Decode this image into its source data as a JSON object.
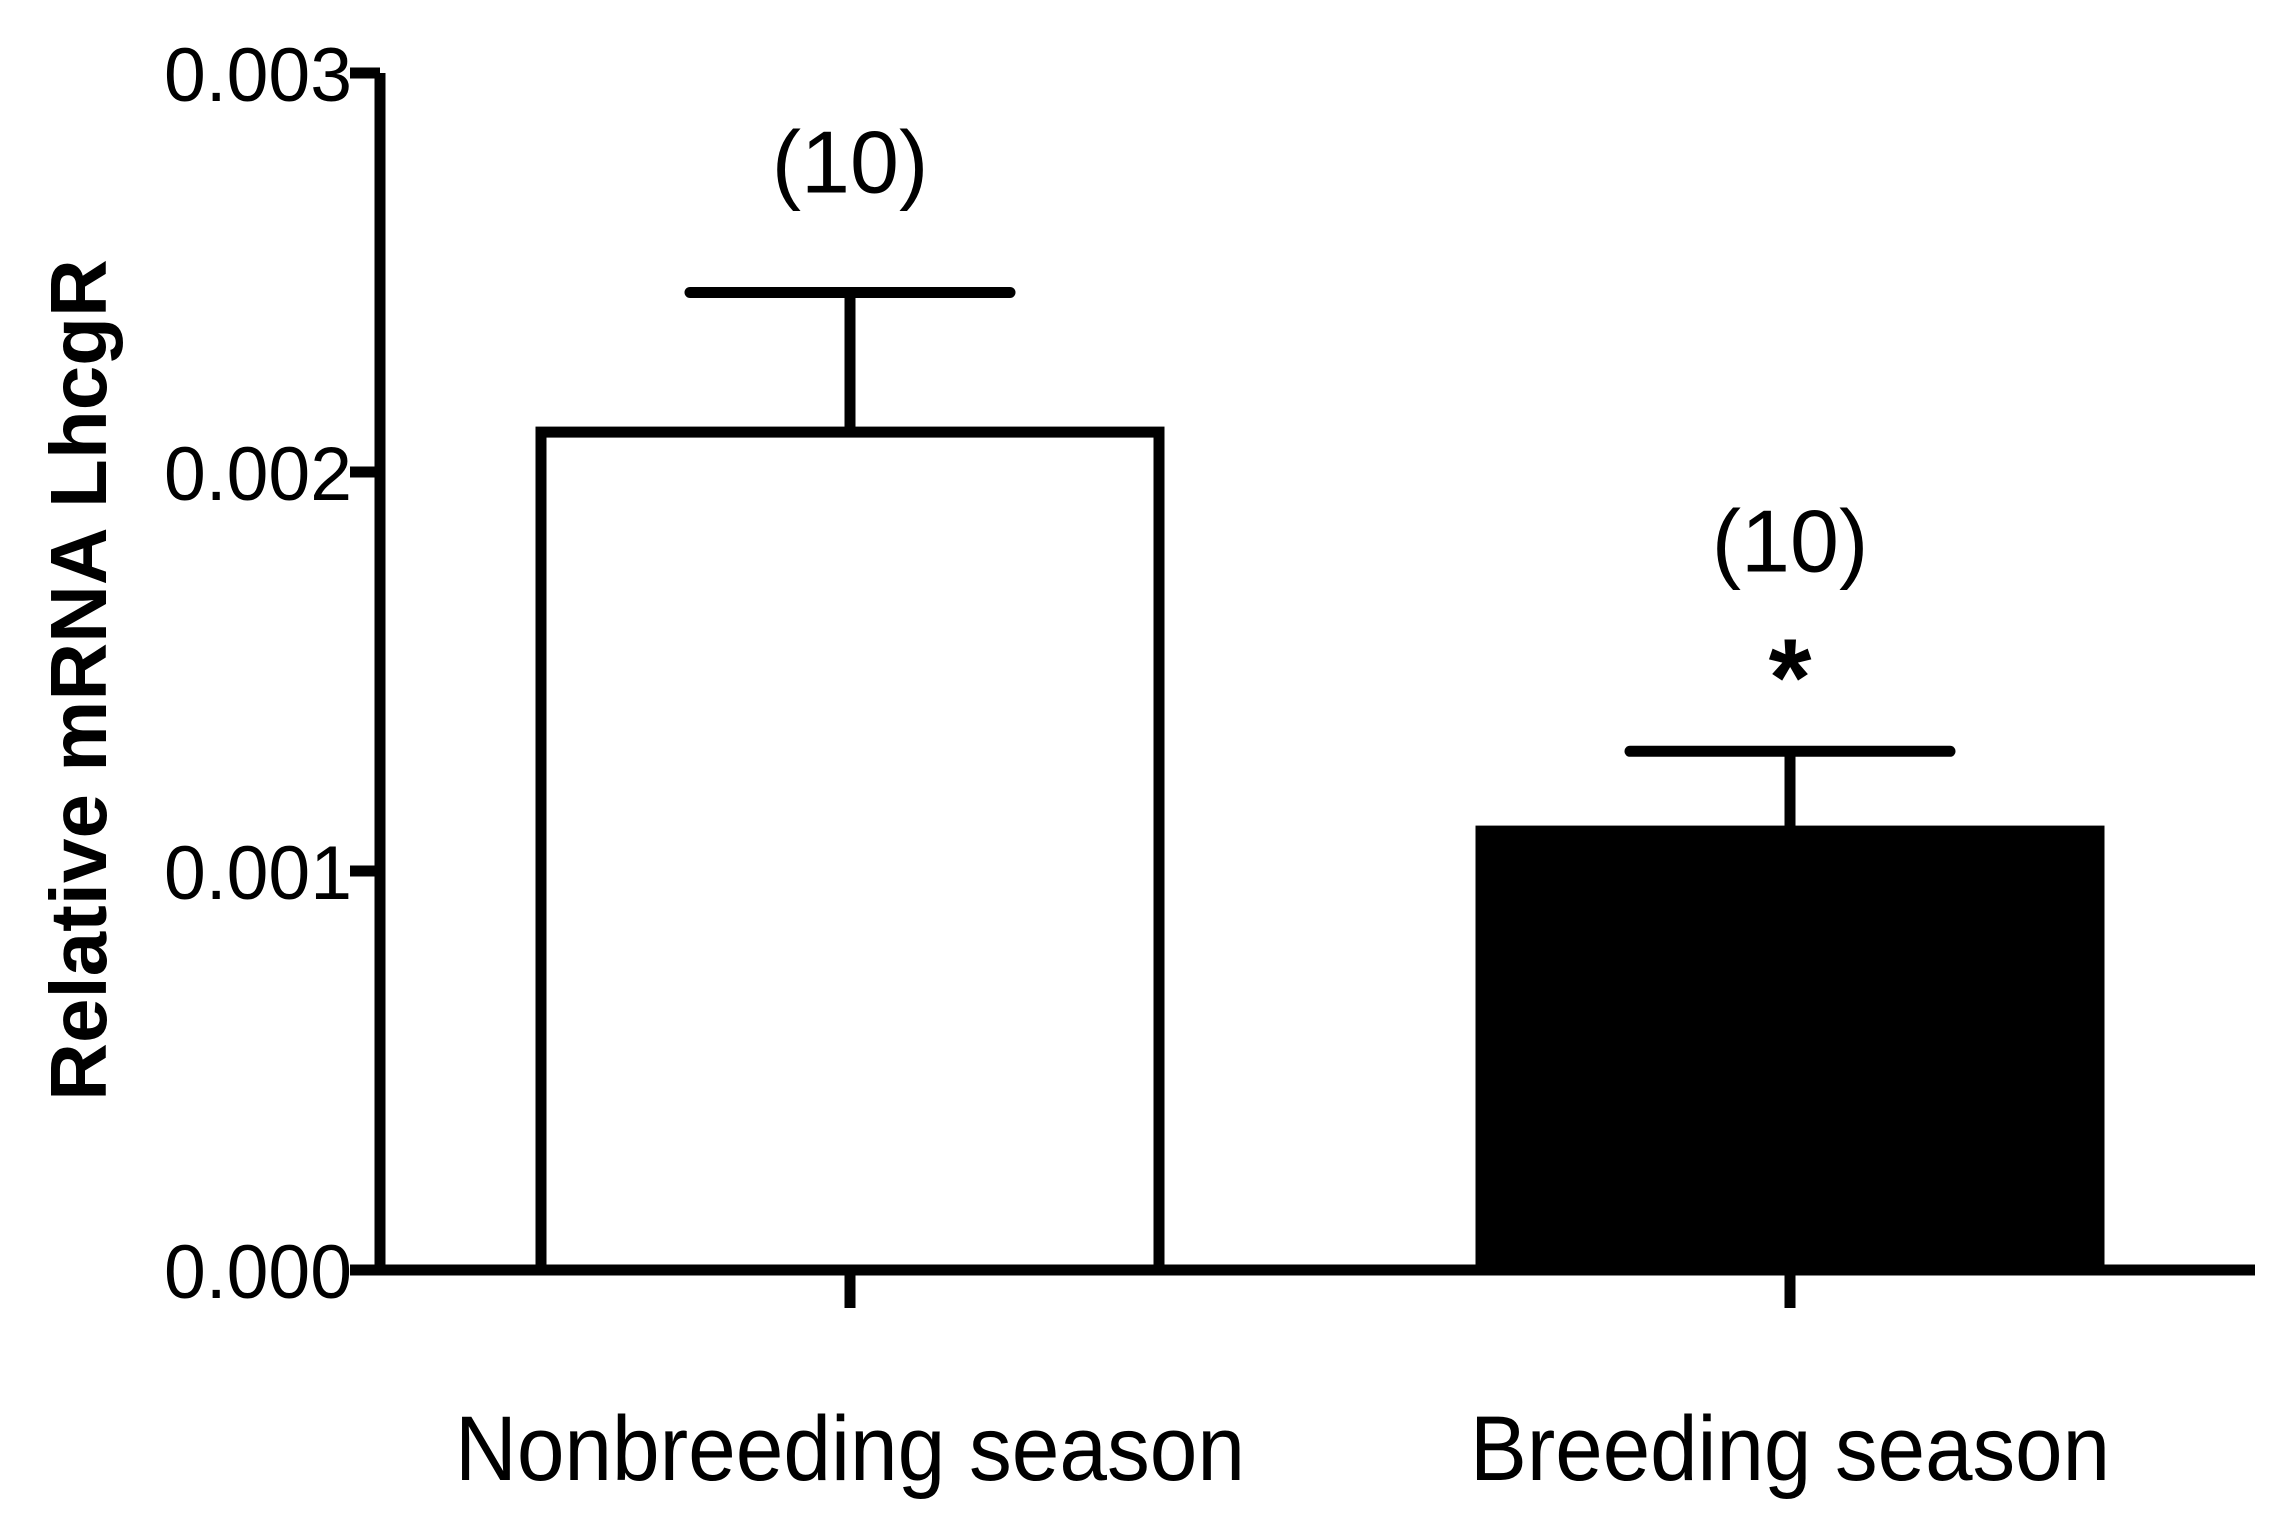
{
  "chart_data": {
    "type": "bar",
    "title": "",
    "xlabel": "",
    "ylabel": "Relative mRNA LhcgR",
    "ylim": [
      0,
      0.003
    ],
    "yticks": [
      "0.000",
      "0.001",
      "0.002",
      "0.003"
    ],
    "categories": [
      "Nonbreeding season",
      "Breeding season"
    ],
    "values": [
      0.0021,
      0.0011
    ],
    "errors": [
      0.00035,
      0.0002
    ],
    "bar_colors": [
      "#ffffff",
      "#000000"
    ],
    "n_labels": [
      "(10)",
      "(10)"
    ],
    "significance": [
      "",
      "*"
    ],
    "grid": false,
    "legend": "none"
  }
}
